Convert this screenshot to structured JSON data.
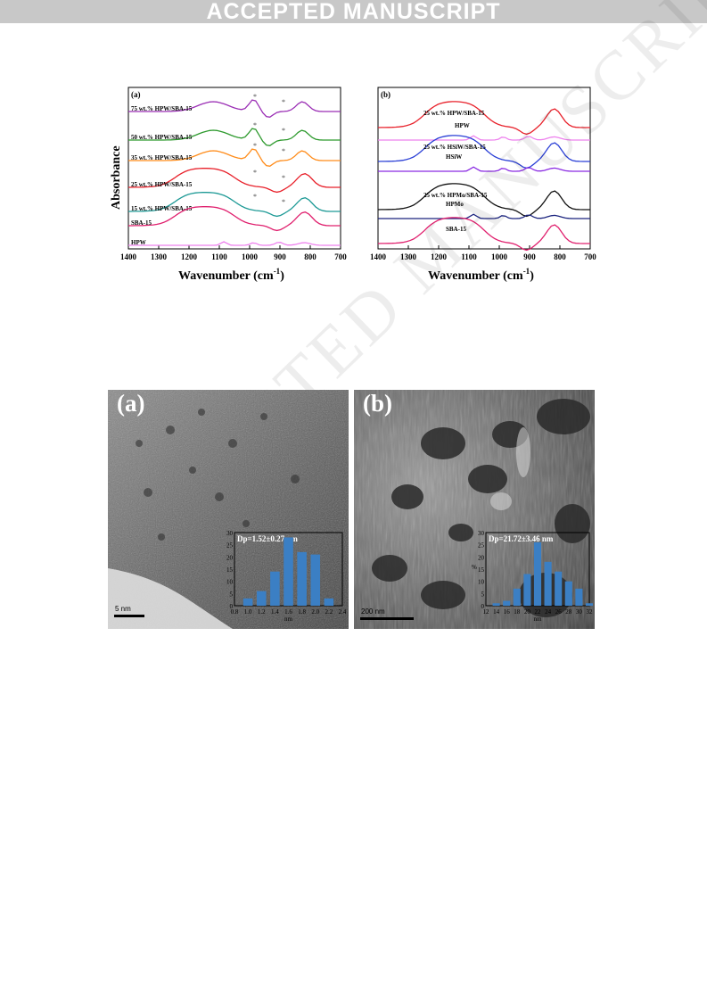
{
  "header": {
    "banner": "ACCEPTED MANUSCRIPT"
  },
  "watermark": "ACCEPTED MANUSCRIPT",
  "figure_ftir": {
    "panel_a": {
      "label": "(a)",
      "ylabel": "Absorbance",
      "xlabel_main": "Wavenumber (cm",
      "xlabel_sup": "-1",
      "xlabel_end": ")",
      "ticks": [
        "1400",
        "1300",
        "1200",
        "1100",
        "1000",
        "900",
        "800",
        "700"
      ],
      "series": [
        {
          "name": "75 wt.% HPW/SBA-15",
          "color": "#9b2fb5"
        },
        {
          "name": "50 wt.% HPW/SBA-15",
          "color": "#2e9a2e"
        },
        {
          "name": "35 wt.% HPW/SBA-15",
          "color": "#ff8c1a"
        },
        {
          "name": "25 wt.% HPW/SBA-15",
          "color": "#e8202a"
        },
        {
          "name": "15 wt.% HPW/SBA-15",
          "color": "#1e9a96"
        },
        {
          "name": "SBA-15",
          "color": "#e0206e"
        },
        {
          "name": "HPW",
          "color": "#ee82ee"
        }
      ],
      "marker": "*"
    },
    "panel_b": {
      "label": "(b)",
      "xlabel_main": "Wavenumber (cm",
      "xlabel_sup": "-1",
      "xlabel_end": ")",
      "ticks": [
        "1400",
        "1300",
        "1200",
        "1100",
        "1000",
        "900",
        "800",
        "700"
      ],
      "series": [
        {
          "name": "25 wt.% HPW/SBA-15",
          "color": "#e8202a"
        },
        {
          "name": "HPW",
          "color": "#ee82ee"
        },
        {
          "name": "25 wt.% HSiW/SBA-15",
          "color": "#2a3fd6"
        },
        {
          "name": "HSiW",
          "color": "#8a2be2"
        },
        {
          "name": "25 wt.% HPMo/SBA-15",
          "color": "#111111"
        },
        {
          "name": "HPMo",
          "color": "#1a237e"
        },
        {
          "name": "SBA-15",
          "color": "#e0206e"
        }
      ]
    }
  },
  "figure_tem": {
    "panel_a": {
      "label": "(a)",
      "scale": "5 nm",
      "inset_title": "Dp=1.52±0.27 nm",
      "inset_xlabel": "nm",
      "inset_yticks": [
        "0",
        "5",
        "10",
        "15",
        "20",
        "25",
        "30"
      ],
      "inset_xticks": [
        "0.8",
        "1.0",
        "1.2",
        "1.4",
        "1.6",
        "1.8",
        "2.0",
        "2.2",
        "2.4"
      ],
      "bar_values": [
        3,
        6,
        14,
        28,
        22,
        21,
        3
      ],
      "bar_color": "#3b7fc4"
    },
    "panel_b": {
      "label": "(b)",
      "scale": "200 nm",
      "inset_title": "Dp=21.72±3.46 nm",
      "inset_xlabel": "nm",
      "inset_ylabel": "%",
      "inset_yticks": [
        "0",
        "5",
        "10",
        "15",
        "20",
        "25",
        "30"
      ],
      "inset_xticks": [
        "12",
        "14",
        "16",
        "18",
        "20",
        "22",
        "24",
        "26",
        "28",
        "30",
        "32"
      ],
      "bar_values": [
        1,
        2,
        7,
        13,
        26,
        18,
        14,
        10,
        7,
        1
      ],
      "bar_color": "#3b7fc4"
    }
  }
}
